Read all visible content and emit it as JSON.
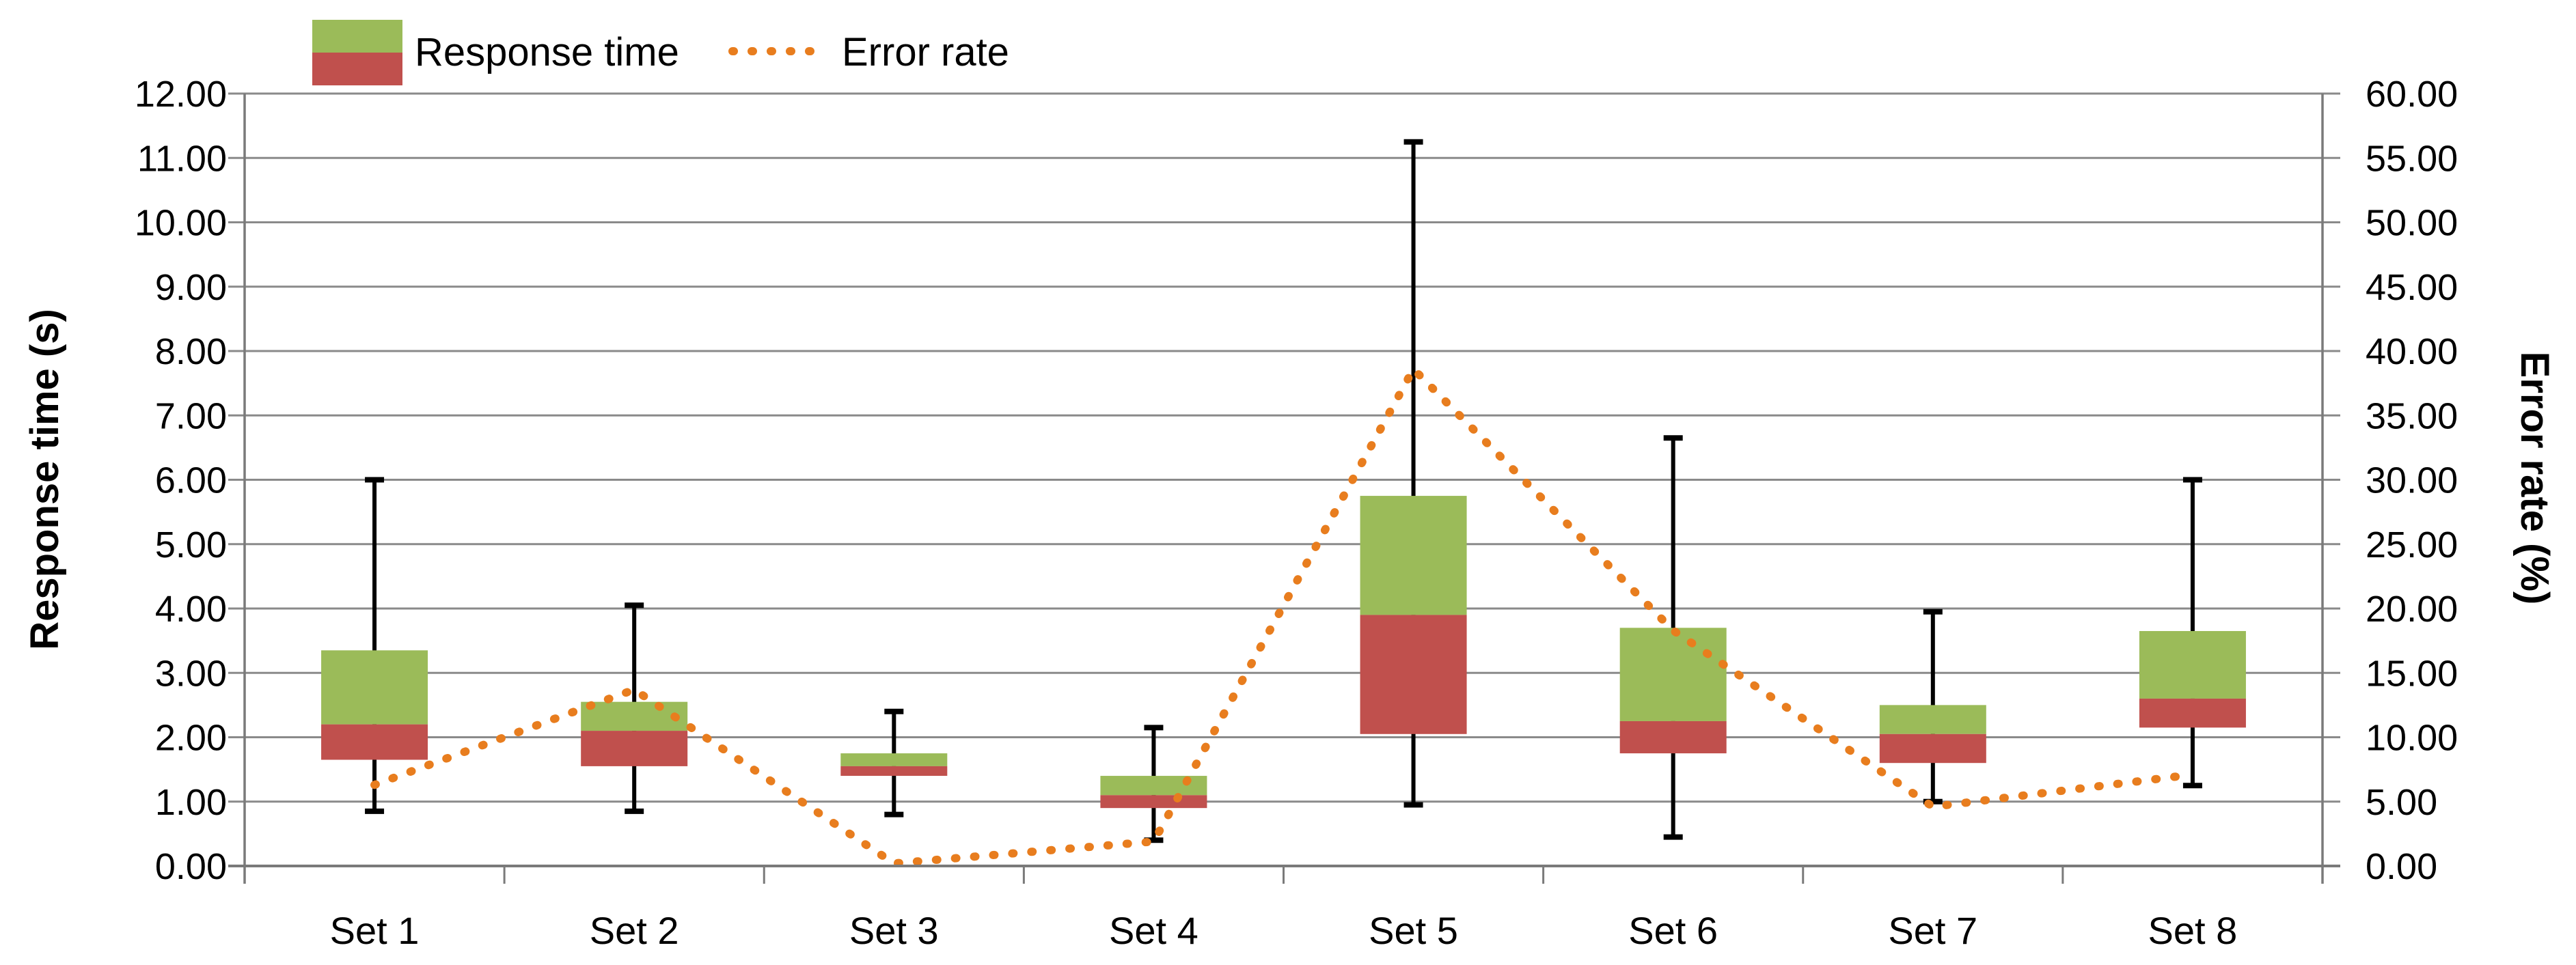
{
  "chart_data": {
    "type": "box-whisker-with-line",
    "title": "",
    "categories": [
      "Set 1",
      "Set 2",
      "Set 3",
      "Set 4",
      "Set 5",
      "Set 6",
      "Set 7",
      "Set 8"
    ],
    "series": [
      {
        "name": "Response time",
        "type": "box",
        "axis": "left",
        "unit": "s",
        "boxes": [
          {
            "min": 0.85,
            "q1": 1.65,
            "median": 2.2,
            "q3": 3.35,
            "max": 6.0
          },
          {
            "min": 0.85,
            "q1": 1.55,
            "median": 2.1,
            "q3": 2.55,
            "max": 4.05
          },
          {
            "min": 0.8,
            "q1": 1.4,
            "median": 1.55,
            "q3": 1.75,
            "max": 2.4
          },
          {
            "min": 0.4,
            "q1": 0.9,
            "median": 1.1,
            "q3": 1.4,
            "max": 2.15
          },
          {
            "min": 0.95,
            "q1": 2.05,
            "median": 3.9,
            "q3": 5.75,
            "max": 11.25
          },
          {
            "min": 0.45,
            "q1": 1.75,
            "median": 2.25,
            "q3": 3.7,
            "max": 6.65
          },
          {
            "min": 1.0,
            "q1": 1.6,
            "median": 2.05,
            "q3": 2.5,
            "max": 3.95
          },
          {
            "min": 1.25,
            "q1": 2.15,
            "median": 2.6,
            "q3": 3.65,
            "max": 6.0
          }
        ]
      },
      {
        "name": "Error rate",
        "type": "dotted-line",
        "axis": "right",
        "unit": "%",
        "values": [
          6.3,
          13.7,
          0.2,
          1.9,
          38.6,
          18.3,
          4.6,
          7.1
        ]
      }
    ],
    "left_axis": {
      "title": "Response time (s)",
      "min": 0,
      "max": 12,
      "step": 1,
      "tick_labels": [
        "12.00",
        "11.00",
        "10.00",
        "9.00",
        "8.00",
        "7.00",
        "6.00",
        "5.00",
        "4.00",
        "3.00",
        "2.00",
        "1.00",
        "0.00"
      ]
    },
    "right_axis": {
      "title": "Error rate (%)",
      "min": 0,
      "max": 60,
      "step": 5,
      "tick_labels": [
        "60.00",
        "55.00",
        "50.00",
        "45.00",
        "40.00",
        "35.00",
        "30.00",
        "25.00",
        "20.00",
        "15.00",
        "10.00",
        "5.00",
        "0.00"
      ]
    },
    "legend_position": "top",
    "grid": true
  },
  "colors": {
    "box_upper": "#9BBB59",
    "box_lower": "#C0504D",
    "whisker": "#000000",
    "error_line": "#E87D1E",
    "gridline": "#8A8A8A",
    "axis_line": "#7A7A7A",
    "text": "#000000",
    "background": "#FFFFFF"
  }
}
